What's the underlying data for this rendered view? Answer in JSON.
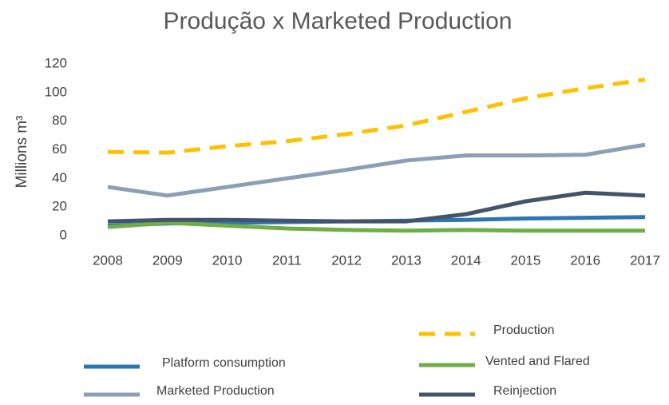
{
  "chart_data": {
    "type": "line",
    "title": "Produção x Marketed Production",
    "y_label": "Millions  m³",
    "categories": [
      "2008",
      "2009",
      "2010",
      "2011",
      "2012",
      "2013",
      "2014",
      "2015",
      "2016",
      "2017"
    ],
    "series": [
      {
        "name": "Production",
        "color": "#ffc000",
        "dashed": true,
        "values": [
          58.5,
          58,
          62.5,
          66,
          71,
          77,
          86.5,
          96,
          103,
          109
        ]
      },
      {
        "name": "Platform consumption",
        "color": "#2e75b6",
        "values": [
          7,
          8.5,
          9,
          9.5,
          10,
          10.5,
          11,
          12,
          12.5,
          13
        ]
      },
      {
        "name": "Vented and Flared",
        "color": "#70ad47",
        "values": [
          6,
          9,
          7,
          5,
          4,
          3.5,
          4,
          3.5,
          3.5,
          3.5
        ]
      },
      {
        "name": "Marketed Production",
        "color": "#8c9fb6",
        "values": [
          34,
          28,
          34,
          40,
          46,
          52.5,
          56,
          56,
          56.5,
          63.5
        ]
      },
      {
        "name": "Reinjection",
        "color": "#44546a",
        "values": [
          10,
          11,
          11,
          10.5,
          10,
          10,
          15,
          24,
          30,
          28
        ]
      }
    ],
    "ylim": [
      0,
      120
    ],
    "yticks": [
      0,
      20,
      40,
      60,
      80,
      100,
      120
    ],
    "grid": false
  }
}
